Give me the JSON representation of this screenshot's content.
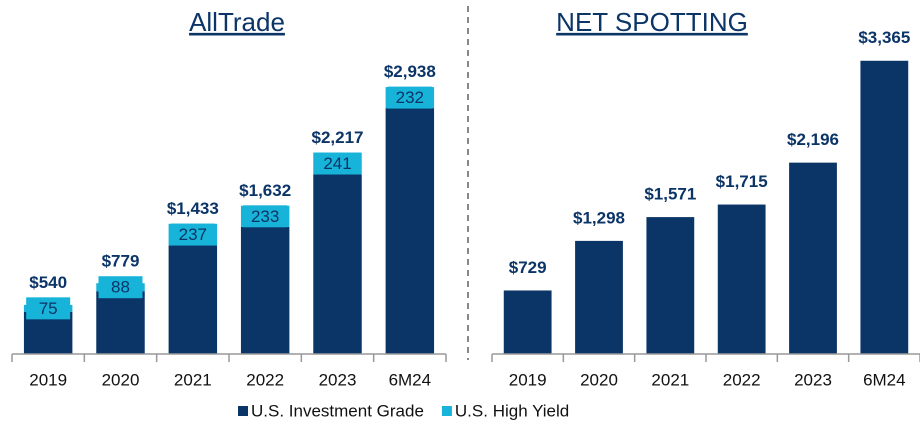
{
  "chart_data": [
    {
      "type": "stacked_bar",
      "title": "AllTrade",
      "categories": [
        "2019",
        "2020",
        "2021",
        "2022",
        "2023",
        "6M24"
      ],
      "series": [
        {
          "name": "U.S. Investment Grade",
          "color": "#0b3467",
          "values": [
            465,
            691,
            1196,
            1399,
            1976,
            2706
          ]
        },
        {
          "name": "U.S. High Yield",
          "color": "#17b3d8",
          "values": [
            75,
            88,
            237,
            233,
            241,
            232
          ]
        }
      ],
      "totals": [
        540,
        779,
        1433,
        1632,
        2217,
        2938
      ],
      "total_labels": [
        "$540",
        "$779",
        "$1,433",
        "$1,632",
        "$2,217",
        "$2,938"
      ],
      "ylim": [
        0,
        3500
      ],
      "legend": "bottom"
    },
    {
      "type": "bar",
      "title": "NET SPOTTING",
      "categories": [
        "2019",
        "2020",
        "2021",
        "2022",
        "2023",
        "6M24"
      ],
      "values": [
        729,
        1298,
        1571,
        1715,
        2196,
        3365
      ],
      "value_labels": [
        "$729",
        "$1,298",
        "$1,571",
        "$1,715",
        "$2,196",
        "$3,365"
      ],
      "color": "#0b3467",
      "ylim": [
        0,
        3500
      ]
    }
  ]
}
